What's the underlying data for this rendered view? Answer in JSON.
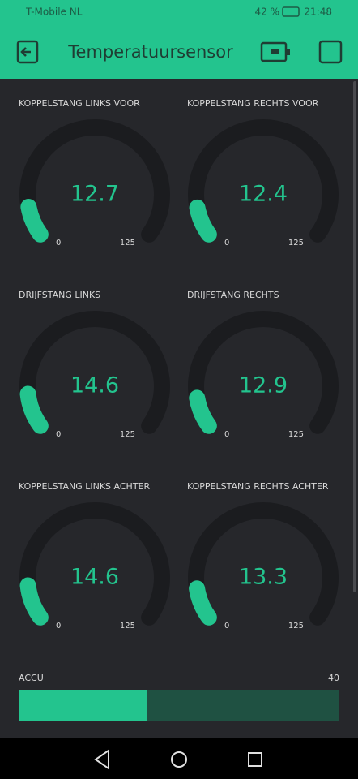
{
  "status_bar": {
    "carrier": "T-Mobile NL",
    "battery": "42 %",
    "time": "21:48"
  },
  "header": {
    "title": "Temperatuursensor"
  },
  "gauges": [
    {
      "label": "KOPPELSTANG LINKS VOOR",
      "value": 12.7,
      "min": 0,
      "max": 125
    },
    {
      "label": "KOPPELSTANG RECHTS VOOR",
      "value": 12.4,
      "min": 0,
      "max": 125
    },
    {
      "label": "DRIJFSTANG LINKS",
      "value": 14.6,
      "min": 0,
      "max": 125
    },
    {
      "label": "DRIJFSTANG RECHTS",
      "value": 12.9,
      "min": 0,
      "max": 125
    },
    {
      "label": "KOPPELSTANG LINKS ACHTER",
      "value": 14.6,
      "min": 0,
      "max": 125
    },
    {
      "label": "KOPPELSTANG RECHTS ACHTER",
      "value": 13.3,
      "min": 0,
      "max": 125
    }
  ],
  "accu": {
    "label": "ACCU",
    "value": 16,
    "max": 40
  }
}
